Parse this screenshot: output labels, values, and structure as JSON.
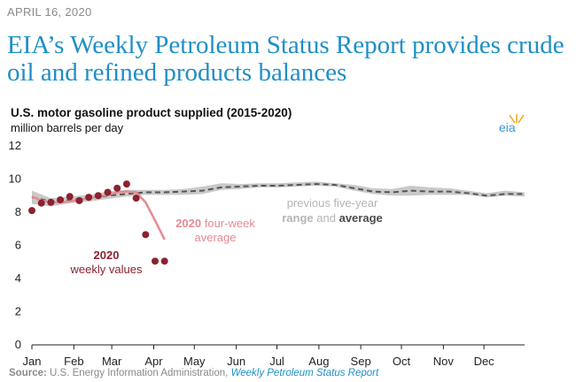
{
  "header": {
    "date": "APRIL 16, 2020",
    "headline": "EIA’s Weekly Petroleum Status Report provides crude oil and refined products balances"
  },
  "logo": {
    "text": "eia"
  },
  "source": {
    "label": "Source:",
    "org": "U.S. Energy Information Administration,",
    "report": "Weekly Petroleum Status Report"
  },
  "chart_data": {
    "type": "line",
    "title": "U.S. motor gasoline product supplied (2015-2020)",
    "ylabel": "million barrels per day",
    "ylim": [
      0,
      12
    ],
    "yticks": [
      0,
      2,
      4,
      6,
      8,
      10,
      12
    ],
    "xlim": [
      0,
      52
    ],
    "xticks": [
      {
        "label": "Jan",
        "week": 0
      },
      {
        "label": "Feb",
        "week": 4.43
      },
      {
        "label": "Mar",
        "week": 8.43
      },
      {
        "label": "Apr",
        "week": 12.86
      },
      {
        "label": "May",
        "week": 17.14
      },
      {
        "label": "Jun",
        "week": 21.57
      },
      {
        "label": "Jul",
        "week": 25.86
      },
      {
        "label": "Aug",
        "week": 30.29
      },
      {
        "label": "Sep",
        "week": 34.71
      },
      {
        "label": "Oct",
        "week": 39
      },
      {
        "label": "Nov",
        "week": 43.43
      },
      {
        "label": "Dec",
        "week": 47.71
      }
    ],
    "grid": false,
    "colors": {
      "range": "#c9c9c9",
      "average": "#555555",
      "average_2020": "#e58a94",
      "weekly_2020": "#8c2230"
    },
    "range_2015_2019": {
      "x": [
        0,
        2,
        4,
        6,
        8,
        10,
        12,
        14,
        16,
        18,
        20,
        22,
        24,
        26,
        28,
        30,
        32,
        34,
        36,
        38,
        40,
        42,
        44,
        46,
        48,
        50,
        52
      ],
      "low": [
        8.5,
        8.35,
        8.55,
        8.65,
        8.8,
        8.95,
        9.05,
        9.05,
        9.05,
        9.1,
        9.35,
        9.4,
        9.5,
        9.5,
        9.55,
        9.6,
        9.55,
        9.3,
        9.1,
        9.0,
        9.0,
        9.05,
        9.05,
        9.05,
        8.9,
        9.0,
        8.95
      ],
      "high": [
        9.3,
        8.85,
        8.95,
        9.05,
        9.25,
        9.35,
        9.35,
        9.35,
        9.4,
        9.55,
        9.75,
        9.7,
        9.75,
        9.75,
        9.8,
        9.85,
        9.75,
        9.65,
        9.45,
        9.4,
        9.6,
        9.5,
        9.45,
        9.3,
        9.15,
        9.3,
        9.2
      ]
    },
    "average_2015_2019": {
      "x": [
        0,
        2,
        4,
        6,
        8,
        10,
        12,
        14,
        16,
        18,
        20,
        22,
        24,
        26,
        28,
        30,
        32,
        34,
        36,
        38,
        40,
        42,
        44,
        46,
        48,
        50,
        52
      ],
      "y": [
        8.9,
        8.65,
        8.75,
        8.85,
        9.0,
        9.1,
        9.2,
        9.2,
        9.25,
        9.3,
        9.5,
        9.55,
        9.6,
        9.6,
        9.65,
        9.7,
        9.65,
        9.45,
        9.25,
        9.2,
        9.3,
        9.25,
        9.25,
        9.15,
        9.0,
        9.1,
        9.1
      ]
    },
    "series": [
      {
        "name": "2020 four-week average",
        "x": [
          0,
          1,
          2,
          3,
          4,
          5,
          6,
          7,
          8,
          9,
          10,
          11,
          12,
          13,
          14
        ],
        "y": [
          8.95,
          8.7,
          8.6,
          8.6,
          8.65,
          8.75,
          8.85,
          8.95,
          9.05,
          9.2,
          9.25,
          9.2,
          8.6,
          7.5,
          6.35
        ]
      },
      {
        "name": "2020 weekly values",
        "x": [
          0,
          1,
          2,
          3,
          4,
          5,
          6,
          7,
          8,
          9,
          10,
          11,
          12,
          13,
          14
        ],
        "y": [
          8.1,
          8.55,
          8.6,
          8.75,
          8.95,
          8.7,
          8.9,
          9.0,
          9.2,
          9.45,
          9.7,
          8.85,
          6.65,
          5.05,
          5.05
        ]
      }
    ],
    "annotations": {
      "range_label_line1": "previous five-year",
      "range_label_range": "range",
      "range_label_and": "and",
      "range_label_average": "average",
      "avg2020_bold": "2020",
      "avg2020_rest": "four-week",
      "avg2020_line2": "average",
      "weekly_line1": "2020",
      "weekly_line2": "weekly values"
    }
  }
}
